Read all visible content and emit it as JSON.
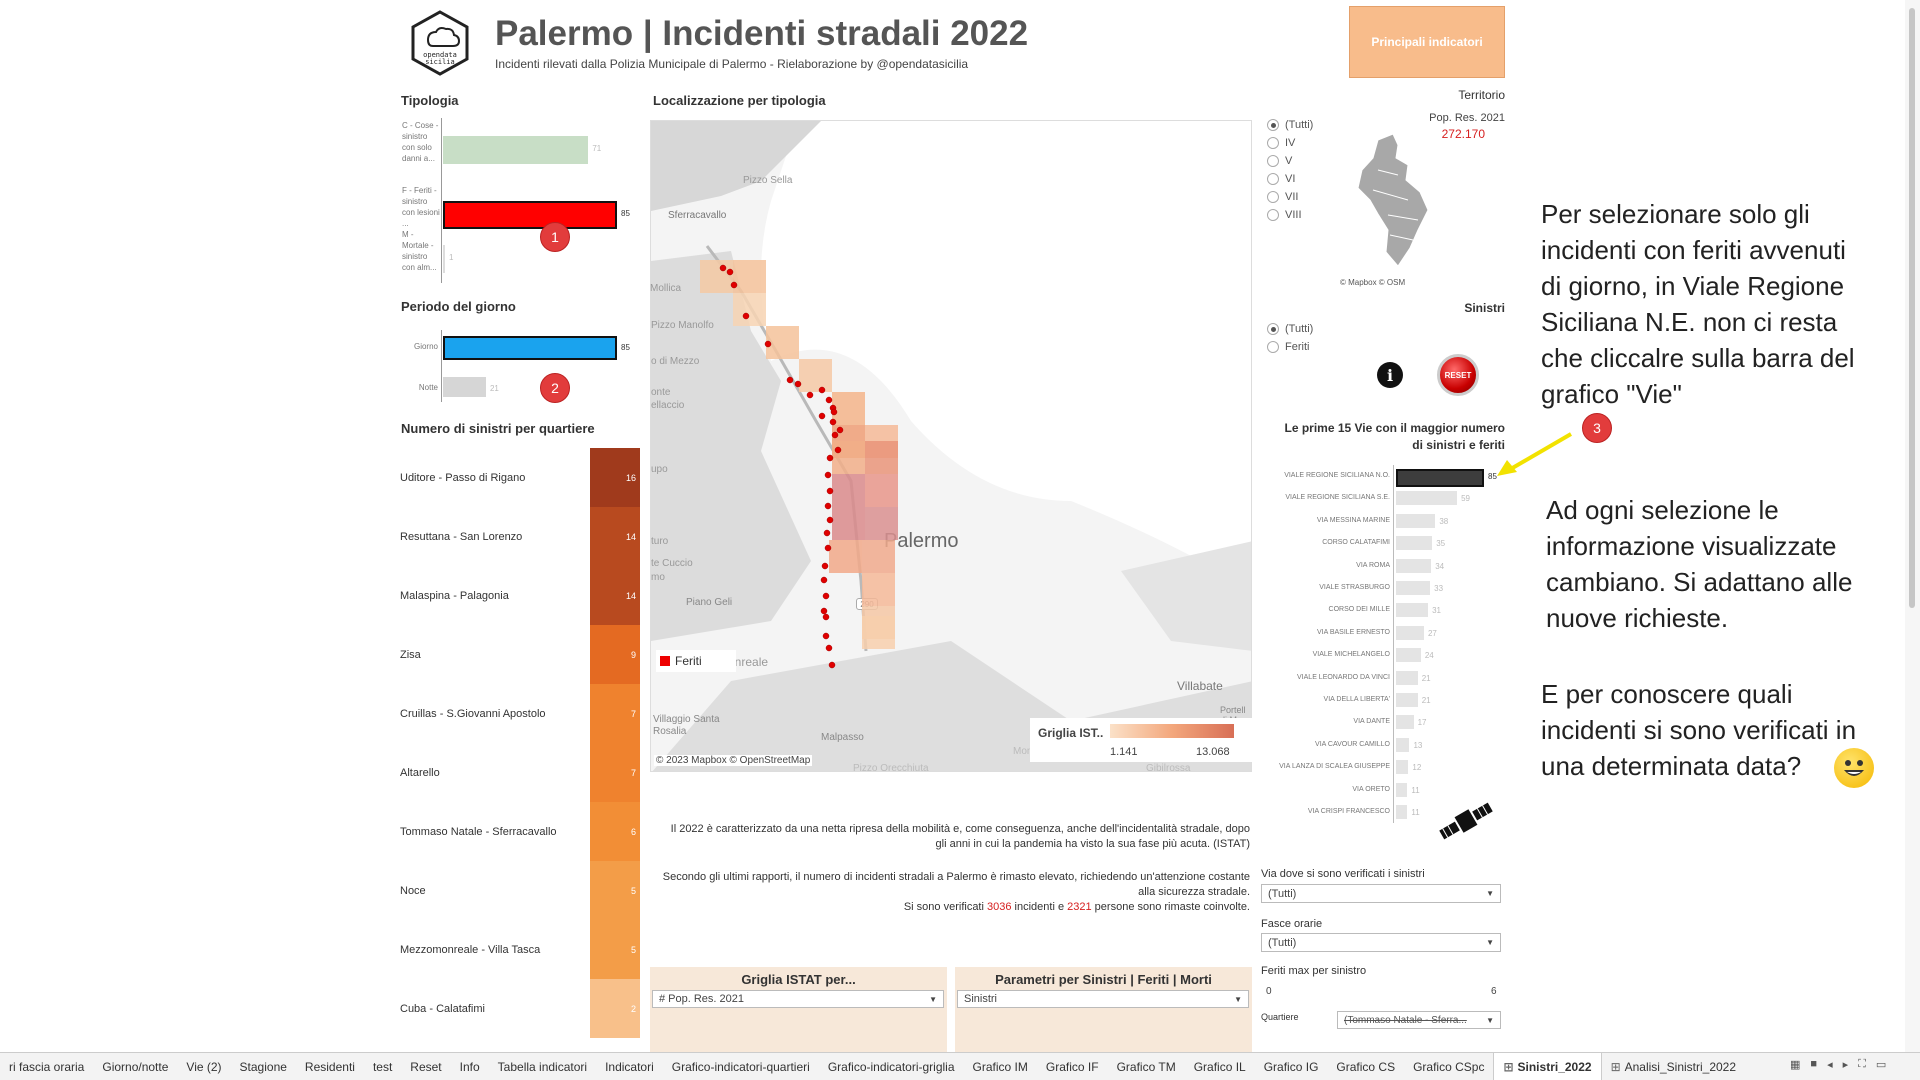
{
  "header": {
    "logo_text": "opendata sicilia",
    "title": "Palermo | Incidenti stradali 2022",
    "subtitle": "Incidenti rilevati dalla Polizia Municipale di Palermo - Rielaborazione by @opendatasicilia",
    "indicators_button": "Principali indicatori"
  },
  "tipologia": {
    "title": "Tipologia",
    "items": [
      {
        "label": "C - Cose - sinistro con solo danni a...",
        "value": 71,
        "value_label": "71",
        "color": "#c8dec6"
      },
      {
        "label": "F - Feriti - sinistro con lesioni ...",
        "value": 85,
        "value_label": "85",
        "color": "#ff0000"
      },
      {
        "label": "M - Mortale - sinistro con alm...",
        "value": 1,
        "value_label": "1",
        "color": "#dddddd"
      }
    ],
    "max": 85
  },
  "periodo": {
    "title": "Periodo del giorno",
    "items": [
      {
        "label": "Giorno",
        "value": 85,
        "value_label": "85",
        "color": "#1aa3ee"
      },
      {
        "label": "Notte",
        "value": 21,
        "value_label": "21",
        "color": "#d6d6d6"
      }
    ],
    "max": 85
  },
  "quartieri": {
    "title": "Numero di sinistri per quartiere",
    "items": [
      {
        "label": "Uditore - Passo di Rigano",
        "value": "16",
        "color": "#a03a1c"
      },
      {
        "label": "Resuttana - San Lorenzo",
        "value": "14",
        "color": "#b84a1f"
      },
      {
        "label": "Malaspina - Palagonia",
        "value": "14",
        "color": "#b84a1f"
      },
      {
        "label": "Zisa",
        "value": "9",
        "color": "#e46a22"
      },
      {
        "label": "Cruillas - S.Giovanni Apostolo",
        "value": "7",
        "color": "#ef822e"
      },
      {
        "label": "Altarello",
        "value": "7",
        "color": "#ef822e"
      },
      {
        "label": "Tommaso Natale - Sferracavallo",
        "value": "6",
        "color": "#f28e36"
      },
      {
        "label": "Noce",
        "value": "5",
        "color": "#f39d48"
      },
      {
        "label": "Mezzomonreale - Villa Tasca",
        "value": "5",
        "color": "#f39d48"
      },
      {
        "label": "Cuba - Calatafimi",
        "value": "2",
        "color": "#f8c08a"
      }
    ]
  },
  "map": {
    "title": "Localizzazione per tipologia",
    "places": {
      "pizzo_sella": "Pizzo Sella",
      "sferracavallo": "Sferracavallo",
      "mollica": "Mollica",
      "pizzo_manolfo": "Pizzo Manolfo",
      "mezzo": "o di Mezzo",
      "monte_bellaccio": "onte ellaccio",
      "cupo": "upo",
      "turo": "turo",
      "cuccio": "te Cuccio",
      "mo": "mo",
      "piano_geli": "Piano Geli",
      "palermo": "Palermo",
      "monreale": "Monreale",
      "villabate": "Villabate",
      "portella": "Portell di Mar",
      "villaggio": "Villaggio Santa Rosalia",
      "malpasso": "Malpasso",
      "monte_grifone": "Monte Grifone",
      "orecchiuta": "Pizzo Orecchiuta",
      "gibilrossa": "Gibilrossa",
      "road": "290"
    },
    "legend_feriti": "Feriti",
    "attribution": "© 2023 Mapbox © OpenStreetMap",
    "griglia_label": "Griglia IST..",
    "griglia_min": "1.141",
    "griglia_max": "13.068"
  },
  "territorio": {
    "title": "Territorio",
    "pop_label": "Pop. Res. 2021",
    "pop_value": "272.170",
    "options": [
      "(Tutti)",
      "IV",
      "V",
      "VI",
      "VII",
      "VIII"
    ],
    "selected": 0,
    "attribution": "© Mapbox © OSM"
  },
  "sinistri": {
    "title": "Sinistri",
    "options": [
      "(Tutti)",
      "Feriti"
    ],
    "selected": 0,
    "info_icon": "i",
    "reset_label": "RESET"
  },
  "vie": {
    "title_line1": "Le prime 15 Vie con il maggior numero",
    "title_line2": "di sinistri e feriti",
    "max": 85,
    "items": [
      {
        "label": "VIALE REGIONE SICILIANA N.O.",
        "value": 85,
        "value_label": "85",
        "selected": true
      },
      {
        "label": "VIALE REGIONE SICILIANA S.E.",
        "value": 59,
        "value_label": "59"
      },
      {
        "label": "VIA MESSINA MARINE",
        "value": 38,
        "value_label": "38"
      },
      {
        "label": "CORSO CALATAFIMI",
        "value": 35,
        "value_label": "35"
      },
      {
        "label": "VIA ROMA",
        "value": 34,
        "value_label": "34"
      },
      {
        "label": "VIALE STRASBURGO",
        "value": 33,
        "value_label": "33"
      },
      {
        "label": "CORSO DEI MILLE",
        "value": 31,
        "value_label": "31"
      },
      {
        "label": "VIA BASILE ERNESTO",
        "value": 27,
        "value_label": "27"
      },
      {
        "label": "VIALE MICHELANGELO",
        "value": 24,
        "value_label": "24"
      },
      {
        "label": "VIALE LEONARDO DA VINCI",
        "value": 21,
        "value_label": "21"
      },
      {
        "label": "VIA DELLA LIBERTA'",
        "value": 21,
        "value_label": "21"
      },
      {
        "label": "VIA DANTE",
        "value": 17,
        "value_label": "17"
      },
      {
        "label": "VIA CAVOUR CAMILLO",
        "value": 13,
        "value_label": "13"
      },
      {
        "label": "VIA LANZA DI SCALEA GIUSEPPE",
        "value": 12,
        "value_label": "12"
      },
      {
        "label": "VIA ORETO",
        "value": 11,
        "value_label": "11"
      },
      {
        "label": "VIA CRISPI FRANCESCO",
        "value": 11,
        "value_label": "11"
      }
    ]
  },
  "text": {
    "p1": "Il 2022 è caratterizzato da una netta ripresa della mobilità e, come conseguenza, anche dell'incidentalità stradale, dopo gli anni in cui la pandemia ha visto la sua fase più acuta. (ISTAT)",
    "p2a": "Secondo gli ultimi rapporti, il numero di incidenti stradali a Palermo è rimasto elevato, richiedendo un'attenzione costante alla sicurezza stradale.",
    "p2b_pre": "Si sono verificati ",
    "p2b_n1": "3036",
    "p2b_mid": " incidenti e ",
    "p2b_n2": "2321",
    "p2b_post": " persone sono rimaste coinvolte."
  },
  "params": {
    "griglia_title": "Griglia ISTAT per...",
    "griglia_value": "# Pop. Res. 2021",
    "param_title": "Parametri per Sinistri | Feriti | Morti",
    "param_value": "Sinistri"
  },
  "filters": {
    "via_label": "Via dove si sono verificati i sinistri",
    "via_value": "(Tutti)",
    "fasce_label": "Fasce orarie",
    "fasce_value": "(Tutti)",
    "feriti_label": "Feriti max per sinistro",
    "feriti_min": "0",
    "feriti_max": "6",
    "quartiere_label": "Quartiere",
    "quartiere_value": "(Tommaso Natale - Sferra..."
  },
  "annotations": {
    "a1_lines": [
      "Per selezionare solo gli",
      "incidenti con feriti avvenuti",
      "di giorno, in Viale Regione",
      "Siciliana N.E. non ci resta",
      "che cliccalre sulla barra del",
      "grafico \"Vie\""
    ],
    "a2_lines": [
      "Ad ogni selezione le",
      "informazione visualizzate",
      "cambiano. Si adattano alle",
      "nuove richieste."
    ],
    "a3_lines": [
      "E per conoscere quali",
      "incidenti si sono verificati in",
      "una determinata data?"
    ],
    "badge1": "1",
    "badge2": "2",
    "badge3": "3"
  },
  "tabs": [
    {
      "label": "ri fascia oraria"
    },
    {
      "label": "Giorno/notte"
    },
    {
      "label": "Vie (2)"
    },
    {
      "label": "Stagione"
    },
    {
      "label": "Residenti"
    },
    {
      "label": "test"
    },
    {
      "label": "Reset"
    },
    {
      "label": "Info"
    },
    {
      "label": "Tabella indicatori"
    },
    {
      "label": "Indicatori"
    },
    {
      "label": "Grafico-indicatori-quartieri"
    },
    {
      "label": "Grafico-indicatori-griglia"
    },
    {
      "label": "Grafico IM"
    },
    {
      "label": "Grafico IF"
    },
    {
      "label": "Grafico TM"
    },
    {
      "label": "Grafico IL"
    },
    {
      "label": "Grafico IG"
    },
    {
      "label": "Grafico CS"
    },
    {
      "label": "Grafico CSpc"
    },
    {
      "label": "Sinistri_2022",
      "active": true,
      "icon": "⊞"
    },
    {
      "label": "Analisi_Sinistri_2022",
      "icon": "⊞"
    }
  ]
}
